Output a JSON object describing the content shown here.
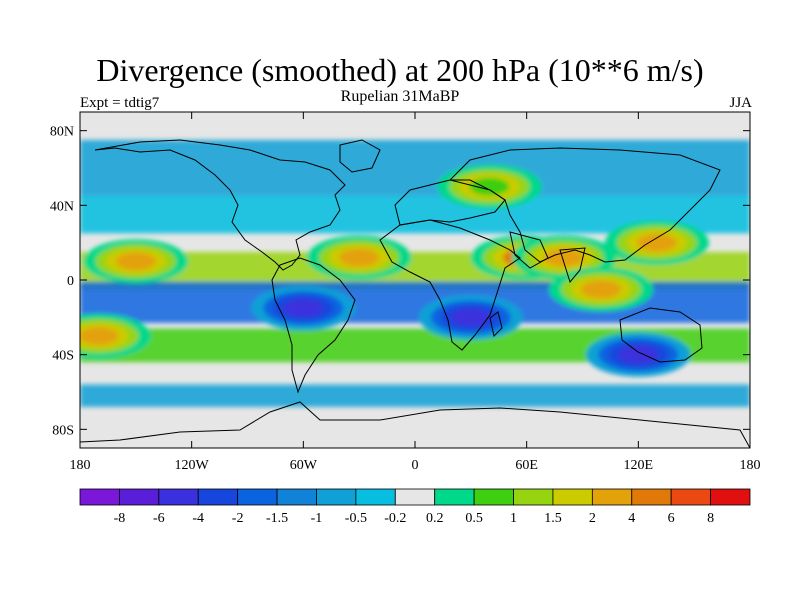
{
  "title": "Divergence (smoothed) at 200 hPa (10**6 m/s)",
  "subtitle": "Rupelian  31MaBP",
  "left_label": "Expt = tdtig7",
  "right_label": "JJA",
  "lat_labels": [
    "80N",
    "40N",
    "0",
    "40S",
    "80S"
  ],
  "lon_labels": [
    "180",
    "120W",
    "60W",
    "0",
    "60E",
    "120E",
    "180"
  ],
  "colorbar": {
    "colors": [
      "#7a17d8",
      "#5b1ed8",
      "#3a30dd",
      "#1646dc",
      "#0a64e0",
      "#1082d8",
      "#0ea0d6",
      "#07bde0",
      "#e6e6e6",
      "#00d88a",
      "#3ecf10",
      "#96d412",
      "#cccb00",
      "#e3a20a",
      "#e07908",
      "#ea4a12",
      "#e01010"
    ],
    "labels": [
      "-8",
      "-6",
      "-4",
      "-2",
      "-1.5",
      "-1",
      "-0.5",
      "-0.2",
      "0.2",
      "0.5",
      "1",
      "1.5",
      "2",
      "4",
      "6",
      "8"
    ]
  },
  "chart_data": {
    "type": "heatmap",
    "variable": "Divergence (smoothed) at 200 hPa",
    "units": "10**6 m/s",
    "season": "JJA",
    "experiment": "tdtig7",
    "period": "Rupelian 31MaBP",
    "x_range": [
      -180,
      180
    ],
    "y_range": [
      -90,
      90
    ],
    "contour_levels": [
      -8,
      -6,
      -4,
      -2,
      -1.5,
      -1,
      -0.5,
      -0.2,
      0.2,
      0.5,
      1,
      1.5,
      2,
      4,
      6,
      8
    ],
    "features": [
      {
        "lon": -150,
        "lat": 10,
        "value": 4
      },
      {
        "lon": -30,
        "lat": 12,
        "value": 4
      },
      {
        "lon": 58,
        "lat": 12,
        "value": 6
      },
      {
        "lon": 80,
        "lat": 12,
        "value": 4
      },
      {
        "lon": 130,
        "lat": 20,
        "value": 4
      },
      {
        "lon": 100,
        "lat": -5,
        "value": 4
      },
      {
        "lon": -170,
        "lat": -30,
        "value": 4
      },
      {
        "lon": -60,
        "lat": -15,
        "value": -4
      },
      {
        "lon": 30,
        "lat": -20,
        "value": -4
      },
      {
        "lon": 120,
        "lat": -40,
        "value": -4
      },
      {
        "lon": 40,
        "lat": 50,
        "value": 1
      }
    ]
  }
}
